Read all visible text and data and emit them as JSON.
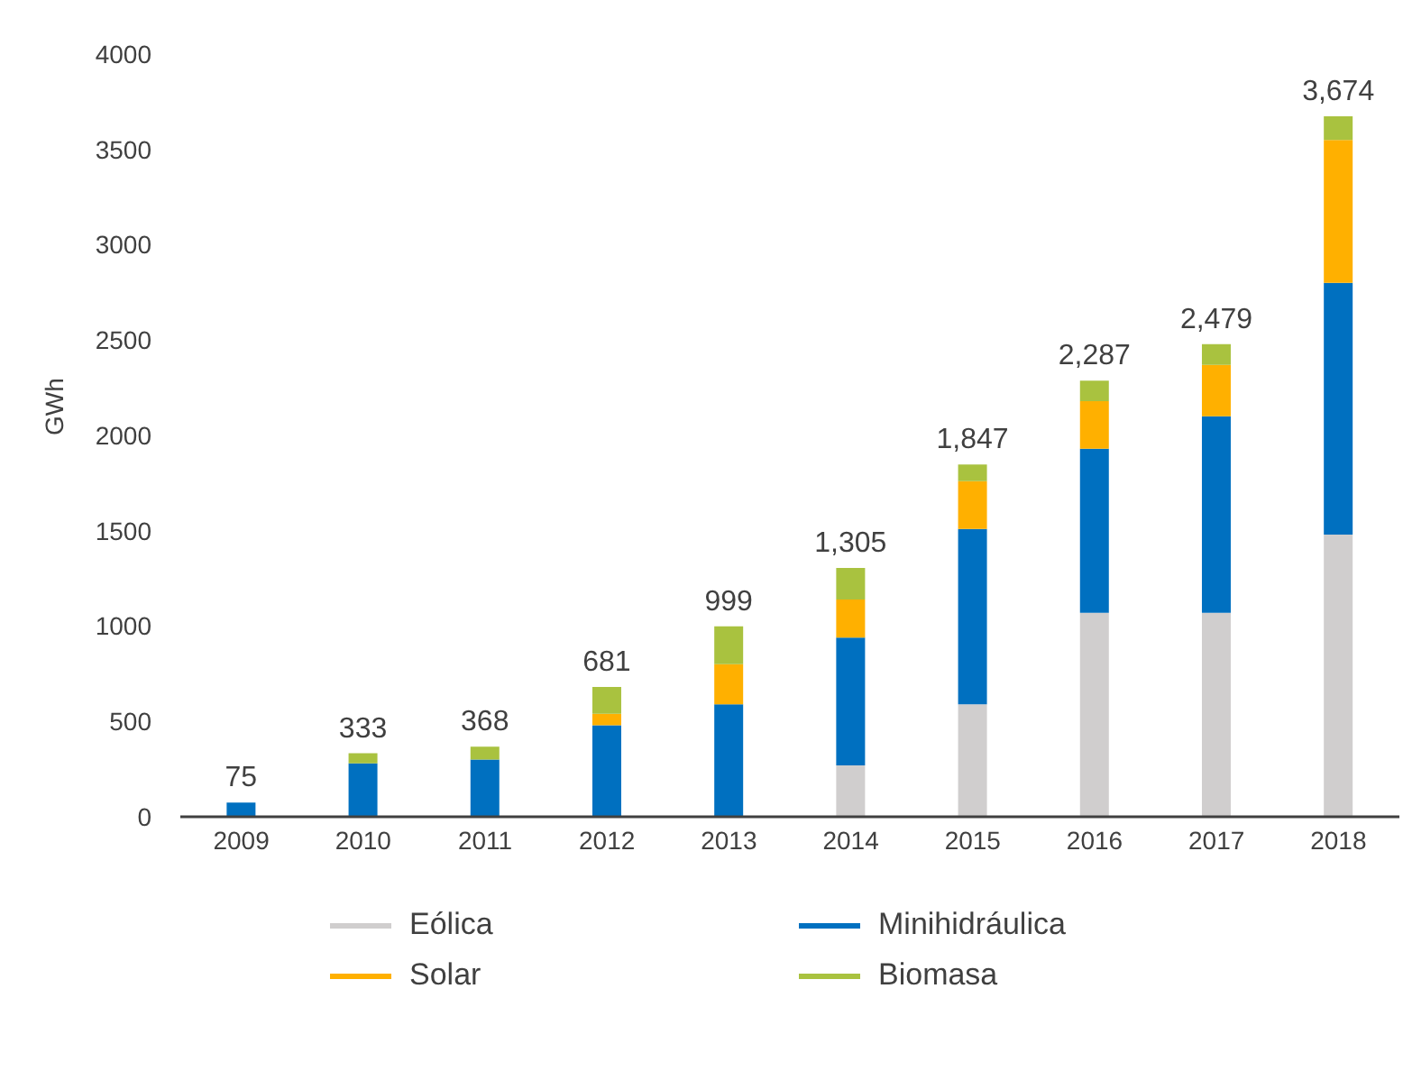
{
  "chart_data": {
    "type": "bar",
    "ylabel": "GWh",
    "stacked": true,
    "categories": [
      "2009",
      "2010",
      "2011",
      "2012",
      "2013",
      "2014",
      "2015",
      "2016",
      "2017",
      "2018"
    ],
    "series": [
      {
        "name": "Eólica",
        "color": "#d0cece",
        "values": [
          null,
          null,
          null,
          null,
          null,
          270,
          590,
          1070,
          1070,
          1480
        ]
      },
      {
        "name": "Minihidráulica",
        "color": "#0070c0",
        "values": [
          75,
          280,
          300,
          480,
          590,
          670,
          920,
          860,
          1030,
          1320
        ]
      },
      {
        "name": "Solar",
        "color": "#ffb000",
        "values": [
          null,
          null,
          null,
          60,
          210,
          200,
          250,
          250,
          270,
          750
        ]
      },
      {
        "name": "Biomasa",
        "color": "#a9c23f",
        "values": [
          null,
          53,
          68,
          141,
          199,
          165,
          87,
          107,
          109,
          124
        ]
      }
    ],
    "totals": [
      "75",
      "333",
      "368",
      "681",
      "999",
      "1,305",
      "1,847",
      "2,287",
      "2,479",
      "3,674"
    ],
    "ylim": [
      0,
      4000
    ],
    "yticks": [
      0,
      500,
      1000,
      1500,
      2000,
      2500,
      3000,
      3500,
      4000
    ],
    "grid": false,
    "legend": "bottom"
  }
}
